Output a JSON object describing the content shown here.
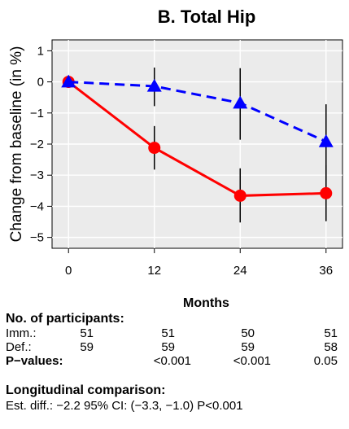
{
  "chart_data": {
    "type": "line",
    "title": "B. Total Hip",
    "xlabel": "Months",
    "ylabel": "Change from baseline (in %)",
    "x": [
      0,
      12,
      24,
      36
    ],
    "xticks": [
      "0",
      "12",
      "24",
      "36"
    ],
    "yticks": [
      "1",
      "0",
      "−1",
      "−2",
      "−3",
      "−4",
      "−5"
    ],
    "xlim": [
      -2.3,
      38.3
    ],
    "ylim": [
      -5.35,
      1.35
    ],
    "grid": true,
    "series": [
      {
        "color": "#ff0000",
        "line_style": "solid",
        "marker": "circle",
        "values": [
          0.0,
          -2.12,
          -3.66,
          -3.58
        ],
        "ci_lower": [
          0.0,
          -2.82,
          -4.52,
          -4.48
        ],
        "ci_upper": [
          0.0,
          -1.42,
          -2.78,
          -2.68
        ]
      },
      {
        "color": "#0000ff",
        "line_style": "dashed",
        "marker": "triangle",
        "values": [
          0.0,
          -0.14,
          -0.68,
          -1.92
        ],
        "ci_lower": [
          0.0,
          -0.78,
          -1.86,
          -3.16
        ],
        "ci_upper": [
          0.0,
          0.46,
          0.44,
          -0.72
        ]
      }
    ]
  },
  "table": {
    "heading": "No. of participants:",
    "rows": [
      {
        "label": "Imm.:",
        "values": [
          "51",
          "51",
          "50",
          "51"
        ]
      },
      {
        "label": "Def.:",
        "values": [
          "59",
          "59",
          "59",
          "58"
        ]
      }
    ],
    "pvalues": {
      "label": "P−values:",
      "values": [
        "<0.001",
        "<0.001",
        "0.05"
      ]
    }
  },
  "longitudinal": {
    "heading": "Longitudinal comparison:",
    "text": "Est. diff.: −2.2  95% CI: (−3.3, −1.0)  P<0.001"
  }
}
